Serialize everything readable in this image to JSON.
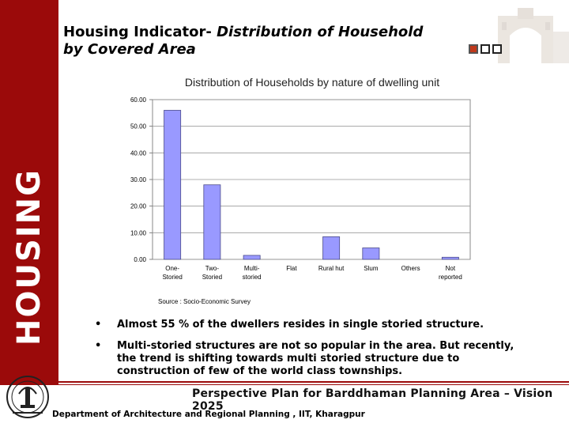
{
  "sidebar": {
    "label": "HOUSING"
  },
  "header": {
    "title_part1": "Housing Indicator-",
    "title_part2": "Distribution of Household by Covered Area"
  },
  "chart_title": "Distribution of Households by nature of dwelling unit",
  "chart_data": {
    "type": "bar",
    "title": "Distribution of Households by nature of dwelling unit",
    "categories": [
      [
        "One-",
        "Storied"
      ],
      [
        "Two-",
        "Storied"
      ],
      [
        "Multi-",
        "storied"
      ],
      [
        "Flat"
      ],
      [
        "Rural hut"
      ],
      [
        "Slum"
      ],
      [
        "Others"
      ],
      [
        "Not",
        "reported"
      ]
    ],
    "values": [
      56.0,
      28.0,
      1.5,
      0.0,
      8.5,
      4.3,
      0.0,
      0.8
    ],
    "ylim": [
      0,
      60
    ],
    "yticks": [
      "0.00",
      "10.00",
      "20.00",
      "30.00",
      "40.00",
      "50.00",
      "60.00"
    ],
    "xlabel": "",
    "ylabel": "",
    "grid": true,
    "bar_color": "#9999ff"
  },
  "source": "Source : Socio-Economic Survey",
  "bullets": [
    {
      "symbol": "•",
      "text": "Almost 55 % of the dwellers resides in single storied structure."
    },
    {
      "symbol": "•",
      "text": "Multi-storied structures are not  so popular in the area. But recently, the trend is shifting towards multi storied structure due to construction of few of the world class townships."
    }
  ],
  "footer": {
    "plan": "Perspective Plan for Barddhaman Planning Area – Vision 2025",
    "dept": "Department of Architecture and Regional Planning , IIT, Kharagpur"
  },
  "colors": {
    "sidebar": "#9b0a0a",
    "bar": "#9999ff",
    "accent_square": "#c0391b"
  }
}
